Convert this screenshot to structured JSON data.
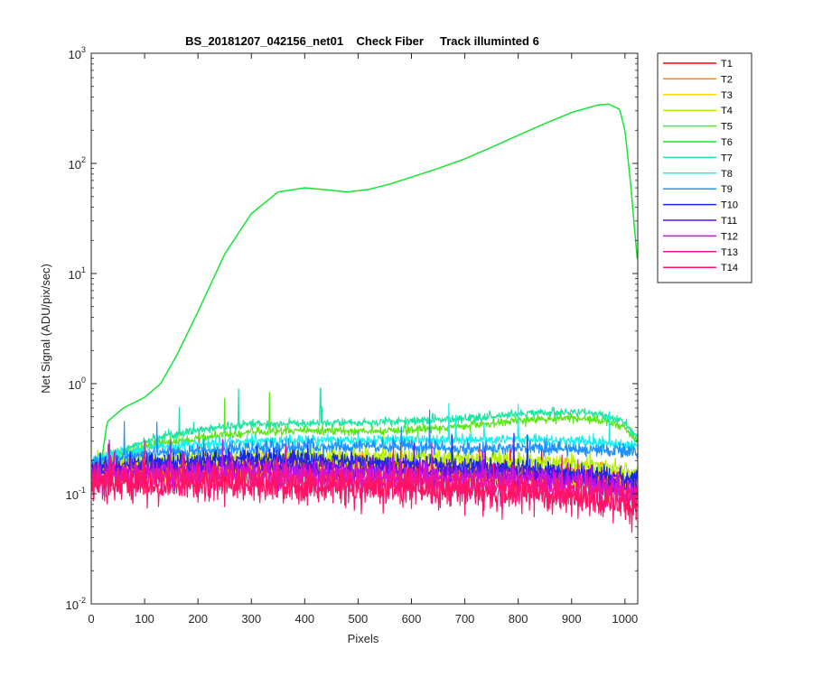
{
  "chart_data": {
    "type": "line",
    "title": "BS_20181207_042156_net01    Check Fiber     Track illuminted 6",
    "xlabel": "Pixels",
    "ylabel": "Net Signal (ADU/pix/sec)",
    "xlim": [
      0,
      1024
    ],
    "ylim": [
      0.01,
      1000
    ],
    "yscale": "log",
    "grid": false,
    "legend_position": "outside-right",
    "xticks": [
      0,
      100,
      200,
      300,
      400,
      500,
      600,
      700,
      800,
      900,
      1000
    ],
    "xtick_labels": [
      "0",
      "100",
      "200",
      "300",
      "400",
      "500",
      "600",
      "700",
      "800",
      "900",
      "1000"
    ],
    "yticks": [
      0.01,
      0.1,
      1,
      10,
      100,
      1000
    ],
    "ytick_labels": [
      {
        "base": "10",
        "exp": "-2"
      },
      {
        "base": "10",
        "exp": "-1"
      },
      {
        "base": "10",
        "exp": "0"
      },
      {
        "base": "10",
        "exp": "1"
      },
      {
        "base": "10",
        "exp": "2"
      },
      {
        "base": "10",
        "exp": "3"
      }
    ],
    "series": [
      {
        "name": "T1",
        "color": "#ff0000",
        "noise": 0.06,
        "points": [
          [
            0,
            0.16
          ],
          [
            100,
            0.16
          ],
          [
            300,
            0.17
          ],
          [
            500,
            0.16
          ],
          [
            700,
            0.15
          ],
          [
            900,
            0.14
          ],
          [
            1024,
            0.13
          ]
        ]
      },
      {
        "name": "T2",
        "color": "#ff7f00",
        "noise": 0.06,
        "points": [
          [
            0,
            0.16
          ],
          [
            100,
            0.16
          ],
          [
            300,
            0.17
          ],
          [
            500,
            0.165
          ],
          [
            700,
            0.155
          ],
          [
            900,
            0.14
          ],
          [
            1024,
            0.13
          ]
        ]
      },
      {
        "name": "T3",
        "color": "#ffd700",
        "noise": 0.05,
        "points": [
          [
            0,
            0.17
          ],
          [
            100,
            0.18
          ],
          [
            300,
            0.19
          ],
          [
            500,
            0.185
          ],
          [
            700,
            0.17
          ],
          [
            900,
            0.15
          ],
          [
            1024,
            0.12
          ]
        ]
      },
      {
        "name": "T4",
        "color": "#b4f000",
        "noise": 0.04,
        "points": [
          [
            0,
            0.18
          ],
          [
            100,
            0.2
          ],
          [
            300,
            0.22
          ],
          [
            500,
            0.22
          ],
          [
            700,
            0.21
          ],
          [
            900,
            0.19
          ],
          [
            1024,
            0.155
          ]
        ]
      },
      {
        "name": "T5",
        "color": "#5ae614",
        "noise": 0.02,
        "points": [
          [
            0,
            0.19
          ],
          [
            100,
            0.27
          ],
          [
            200,
            0.32
          ],
          [
            300,
            0.36
          ],
          [
            400,
            0.38
          ],
          [
            500,
            0.37
          ],
          [
            600,
            0.38
          ],
          [
            700,
            0.41
          ],
          [
            800,
            0.46
          ],
          [
            900,
            0.49
          ],
          [
            950,
            0.47
          ],
          [
            1000,
            0.4
          ],
          [
            1024,
            0.3
          ]
        ]
      },
      {
        "name": "T6",
        "color": "#14e632",
        "noise": 0,
        "points": [
          [
            0,
            0.19
          ],
          [
            20,
            0.21
          ],
          [
            30,
            0.45
          ],
          [
            60,
            0.6
          ],
          [
            100,
            0.75
          ],
          [
            130,
            1.0
          ],
          [
            160,
            1.8
          ],
          [
            200,
            4.5
          ],
          [
            250,
            15
          ],
          [
            300,
            35
          ],
          [
            350,
            55
          ],
          [
            400,
            60
          ],
          [
            450,
            57
          ],
          [
            480,
            55
          ],
          [
            520,
            58
          ],
          [
            560,
            65
          ],
          [
            600,
            75
          ],
          [
            650,
            90
          ],
          [
            700,
            110
          ],
          [
            750,
            140
          ],
          [
            800,
            180
          ],
          [
            850,
            230
          ],
          [
            900,
            290
          ],
          [
            950,
            340
          ],
          [
            970,
            345
          ],
          [
            990,
            310
          ],
          [
            1000,
            200
          ],
          [
            1010,
            70
          ],
          [
            1024,
            12
          ]
        ]
      },
      {
        "name": "T7",
        "color": "#1ee6a0",
        "noise": 0.02,
        "points": [
          [
            0,
            0.2
          ],
          [
            100,
            0.3
          ],
          [
            200,
            0.38
          ],
          [
            300,
            0.43
          ],
          [
            400,
            0.44
          ],
          [
            500,
            0.44
          ],
          [
            600,
            0.46
          ],
          [
            700,
            0.48
          ],
          [
            800,
            0.53
          ],
          [
            900,
            0.55
          ],
          [
            950,
            0.53
          ],
          [
            1000,
            0.45
          ],
          [
            1024,
            0.32
          ]
        ]
      },
      {
        "name": "T8",
        "color": "#14f0f0",
        "noise": 0.025,
        "points": [
          [
            0,
            0.2
          ],
          [
            100,
            0.26
          ],
          [
            300,
            0.3
          ],
          [
            500,
            0.31
          ],
          [
            700,
            0.31
          ],
          [
            900,
            0.31
          ],
          [
            1024,
            0.27
          ]
        ]
      },
      {
        "name": "T9",
        "color": "#1e90ff",
        "noise": 0.03,
        "points": [
          [
            0,
            0.19
          ],
          [
            100,
            0.23
          ],
          [
            300,
            0.26
          ],
          [
            500,
            0.27
          ],
          [
            700,
            0.26
          ],
          [
            900,
            0.26
          ],
          [
            1024,
            0.24
          ]
        ]
      },
      {
        "name": "T10",
        "color": "#1428e6",
        "noise": 0.04,
        "points": [
          [
            0,
            0.17
          ],
          [
            100,
            0.19
          ],
          [
            300,
            0.21
          ],
          [
            500,
            0.2
          ],
          [
            700,
            0.18
          ],
          [
            900,
            0.16
          ],
          [
            1024,
            0.13
          ]
        ]
      },
      {
        "name": "T11",
        "color": "#5a14e6",
        "noise": 0.05,
        "points": [
          [
            0,
            0.16
          ],
          [
            100,
            0.17
          ],
          [
            300,
            0.18
          ],
          [
            500,
            0.17
          ],
          [
            700,
            0.16
          ],
          [
            900,
            0.14
          ],
          [
            1024,
            0.11
          ]
        ]
      },
      {
        "name": "T12",
        "color": "#be14e6",
        "noise": 0.06,
        "points": [
          [
            0,
            0.15
          ],
          [
            100,
            0.15
          ],
          [
            300,
            0.16
          ],
          [
            500,
            0.15
          ],
          [
            700,
            0.14
          ],
          [
            900,
            0.13
          ],
          [
            1024,
            0.1
          ]
        ]
      },
      {
        "name": "T13",
        "color": "#f014a0",
        "noise": 0.07,
        "points": [
          [
            0,
            0.14
          ],
          [
            100,
            0.14
          ],
          [
            300,
            0.14
          ],
          [
            500,
            0.13
          ],
          [
            700,
            0.12
          ],
          [
            900,
            0.11
          ],
          [
            1024,
            0.09
          ]
        ]
      },
      {
        "name": "T14",
        "color": "#ff1464",
        "noise": 0.09,
        "points": [
          [
            0,
            0.13
          ],
          [
            100,
            0.12
          ],
          [
            300,
            0.12
          ],
          [
            500,
            0.115
          ],
          [
            700,
            0.105
          ],
          [
            900,
            0.09
          ],
          [
            1024,
            0.075
          ]
        ]
      }
    ]
  }
}
